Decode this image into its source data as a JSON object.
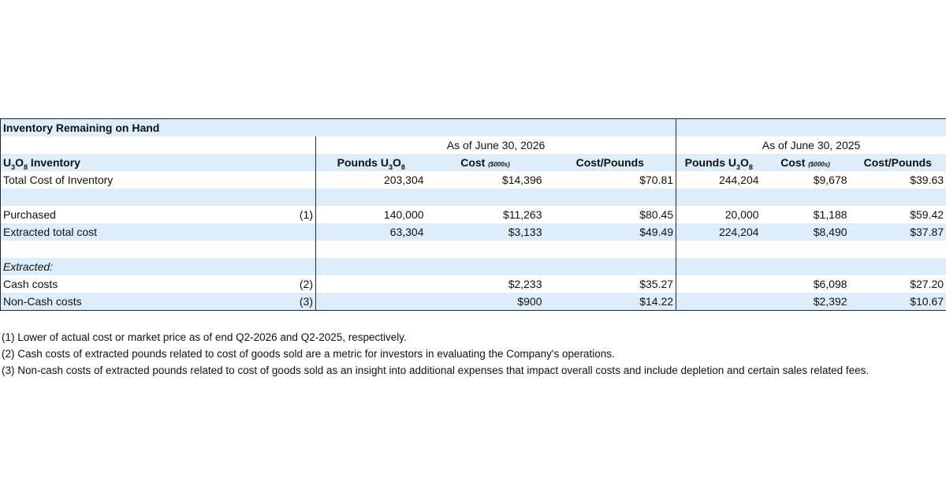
{
  "table": {
    "section_title": "Inventory Remaining on Hand",
    "period_2026": "As of June 30, 2026",
    "period_2025": "As of June 30, 2025",
    "row_header": {
      "label_pre": "U",
      "label_sub1": "3",
      "label_mid": "O",
      "label_sub2": "8",
      "label_post": " Inventory"
    },
    "col_pounds": {
      "pre": "Pounds U",
      "sub1": "3",
      "mid": "O",
      "sub2": "8"
    },
    "col_cost": "Cost ",
    "col_cost_unit": "($000s)",
    "col_cpp": "Cost/Pounds",
    "rows": {
      "total": {
        "label": "Total Cost of Inventory",
        "note": "",
        "v": [
          "203,304",
          "$14,396",
          "$70.81",
          "244,204",
          "$9,678",
          "$39.63"
        ]
      },
      "purchased": {
        "label": "Purchased",
        "note": "(1)",
        "v": [
          "140,000",
          "$11,263",
          "$80.45",
          "20,000",
          "$1,188",
          "$59.42"
        ]
      },
      "extracted_total": {
        "label": "Extracted total cost",
        "note": "",
        "v": [
          "63,304",
          "$3,133",
          "$49.49",
          "224,204",
          "$8,490",
          "$37.87"
        ]
      },
      "extracted_heading": {
        "label": "Extracted:"
      },
      "cash": {
        "label": "Cash costs",
        "note": "(2)",
        "v": [
          "",
          "$2,233",
          "$35.27",
          "",
          "$6,098",
          "$27.20"
        ]
      },
      "noncash": {
        "label": "Non-Cash costs",
        "note": "(3)",
        "v": [
          "",
          "$900",
          "$14.22",
          "",
          "$2,392",
          "$10.67"
        ]
      }
    }
  },
  "footnotes": [
    "(1) Lower of actual cost or market price as of end Q2-2026 and Q2-2025, respectively.",
    "(2) Cash costs of extracted pounds related to cost of goods sold are a metric for investors in evaluating the Company's operations.",
    "(3) Non-cash costs of extracted pounds related to cost of goods sold as an insight into additional expenses that impact overall costs and include depletion and certain sales related fees."
  ]
}
